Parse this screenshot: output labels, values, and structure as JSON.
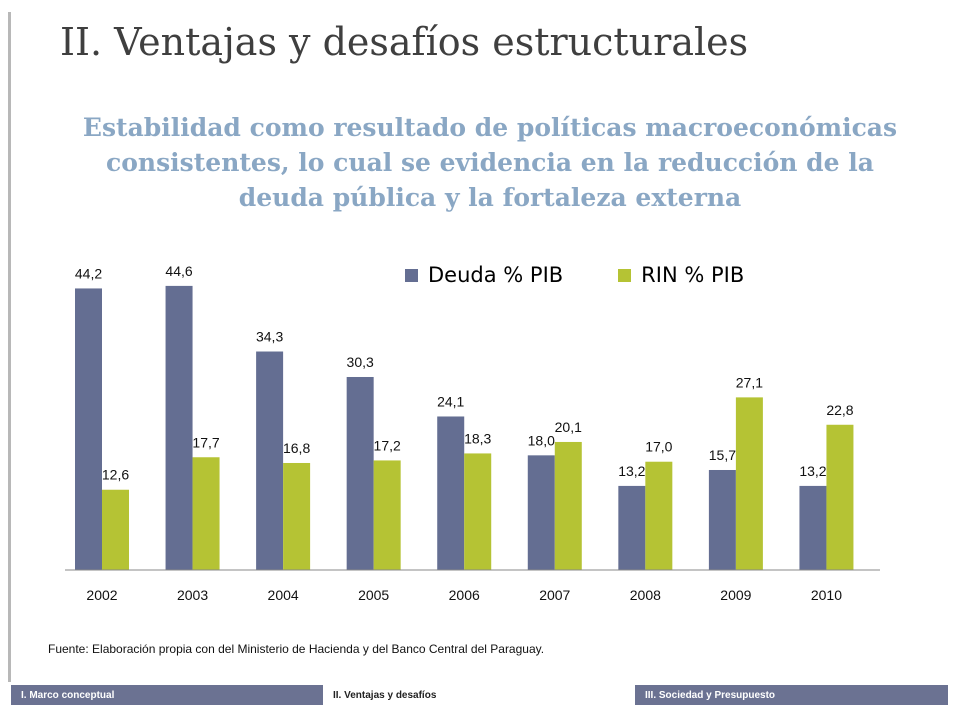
{
  "slide": {
    "title": "II. Ventajas y desafíos estructurales",
    "subtitle": "Estabilidad como resultado de políticas macroeconómicas consistentes, lo cual se evidencia en la reducción de la deuda pública y la fortaleza externa",
    "source": "Fuente: Elaboración propia con del Ministerio de Hacienda y del Banco Central del Paraguay."
  },
  "footer": {
    "section1": "I. Marco conceptual",
    "section2": "II. Ventajas y desafíos",
    "section3": "III. Sociedad y Presupuesto"
  },
  "colors": {
    "deuda": "#646e92",
    "rin": "#b5c334",
    "axis": "#888888"
  },
  "chart_data": {
    "type": "bar",
    "categories": [
      "2002",
      "2003",
      "2004",
      "2005",
      "2006",
      "2007",
      "2008",
      "2009",
      "2010"
    ],
    "series": [
      {
        "name": "Deuda % PIB",
        "values": [
          44.2,
          44.6,
          34.3,
          30.3,
          24.1,
          18.0,
          13.2,
          15.7,
          13.2
        ],
        "labels": [
          "44,2",
          "44,6",
          "34,3",
          "30,3",
          "24,1",
          "18,0",
          "13,2",
          "15,7",
          "13,2"
        ]
      },
      {
        "name": "RIN % PIB",
        "values": [
          12.6,
          17.7,
          16.8,
          17.2,
          18.3,
          20.1,
          17.0,
          27.1,
          22.8
        ],
        "labels": [
          "12,6",
          "17,7",
          "16,8",
          "17,2",
          "18,3",
          "20,1",
          "17,0",
          "27,1",
          "22,8"
        ]
      }
    ],
    "legend": "top-right",
    "grid": false,
    "ylim": [
      0,
      50
    ]
  }
}
